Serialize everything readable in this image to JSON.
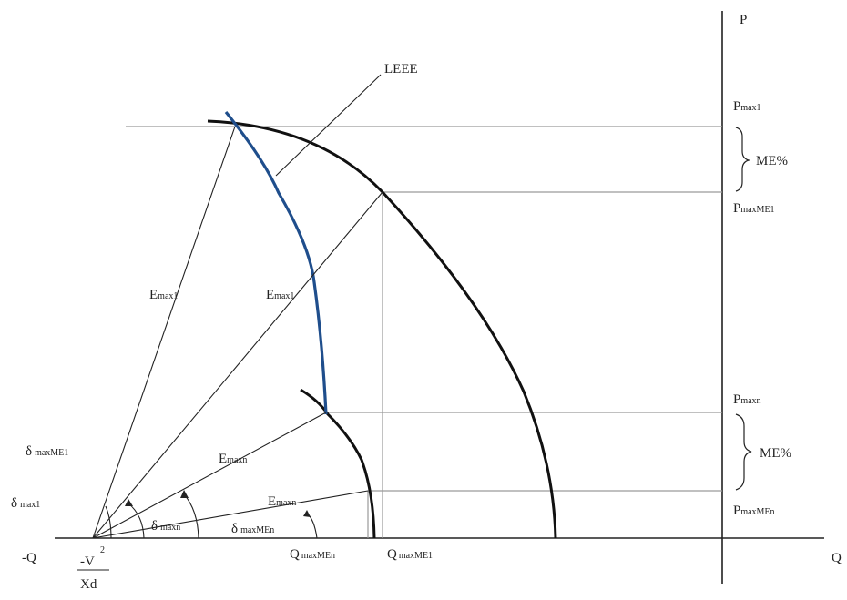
{
  "axes": {
    "p_label": "P",
    "q_label": "Q",
    "neg_q_label": "-Q"
  },
  "origin": {
    "numerator": "-V",
    "exponent": "2",
    "denominator": "Xd"
  },
  "curve_label": "LEEE",
  "p_levels": {
    "pmax1": {
      "main": "P",
      "sub": "max1"
    },
    "pmaxme1": {
      "main": "P",
      "sub": "maxME1"
    },
    "pmaxn": {
      "main": "P",
      "sub": "maxn"
    },
    "pmaxmen": {
      "main": "P",
      "sub": "maxMEn"
    }
  },
  "me_labels": {
    "upper": "ME%",
    "lower": "ME%"
  },
  "vectors": {
    "emax1_outer": {
      "main": "E",
      "sub": "max1"
    },
    "emax1_inner": {
      "main": "E",
      "sub": "max1"
    },
    "emaxn_upper": {
      "main": "E",
      "sub": "maxn"
    },
    "emaxn_lower": {
      "main": "E",
      "sub": "maxn"
    }
  },
  "angles": {
    "dmaxme1": {
      "main": "δ",
      "sub": "maxME1"
    },
    "dmax1": {
      "main": "δ",
      "sub": "max1"
    },
    "dmaxn": {
      "main": "δ",
      "sub": "maxn"
    },
    "dmaxmen": {
      "main": "δ",
      "sub": "maxMEn"
    }
  },
  "q_points": {
    "qmaxmen": {
      "main": "Q",
      "sub": "maxMEn"
    },
    "qmaxme1": {
      "main": "Q",
      "sub": "maxME1"
    }
  },
  "colors": {
    "leee_curve": "#1f4e8c",
    "capability_arcs": "#111111",
    "guide_lines": "#9a9a9a"
  }
}
